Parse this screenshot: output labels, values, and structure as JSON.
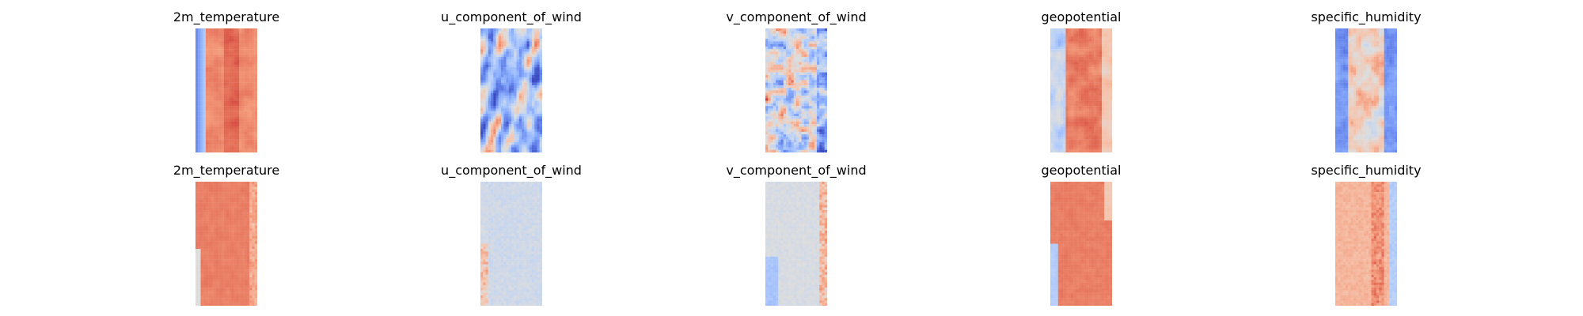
{
  "chart_data": [
    {
      "type": "heatmap",
      "title": "2m_temperature",
      "colormap": "coolwarm",
      "row": 1,
      "column": 1,
      "pattern": "temperature"
    },
    {
      "type": "heatmap",
      "title": "u_component_of_wind",
      "colormap": "coolwarm",
      "row": 1,
      "column": 2,
      "pattern": "u_wind"
    },
    {
      "type": "heatmap",
      "title": "v_component_of_wind",
      "colormap": "coolwarm",
      "row": 1,
      "column": 3,
      "pattern": "v_wind"
    },
    {
      "type": "heatmap",
      "title": "geopotential",
      "colormap": "coolwarm",
      "row": 1,
      "column": 4,
      "pattern": "geopotential"
    },
    {
      "type": "heatmap",
      "title": "specific_humidity",
      "colormap": "coolwarm",
      "row": 1,
      "column": 5,
      "pattern": "humidity"
    },
    {
      "type": "heatmap",
      "title": "2m_temperature",
      "colormap": "coolwarm",
      "row": 2,
      "column": 1,
      "pattern": "temperature_error"
    },
    {
      "type": "heatmap",
      "title": "u_component_of_wind",
      "colormap": "coolwarm",
      "row": 2,
      "column": 2,
      "pattern": "u_wind_error"
    },
    {
      "type": "heatmap",
      "title": "v_component_of_wind",
      "colormap": "coolwarm",
      "row": 2,
      "column": 3,
      "pattern": "v_wind_error"
    },
    {
      "type": "heatmap",
      "title": "geopotential",
      "colormap": "coolwarm",
      "row": 2,
      "column": 4,
      "pattern": "geopotential_error"
    },
    {
      "type": "heatmap",
      "title": "specific_humidity",
      "colormap": "coolwarm",
      "row": 2,
      "column": 5,
      "pattern": "humidity_error"
    }
  ]
}
